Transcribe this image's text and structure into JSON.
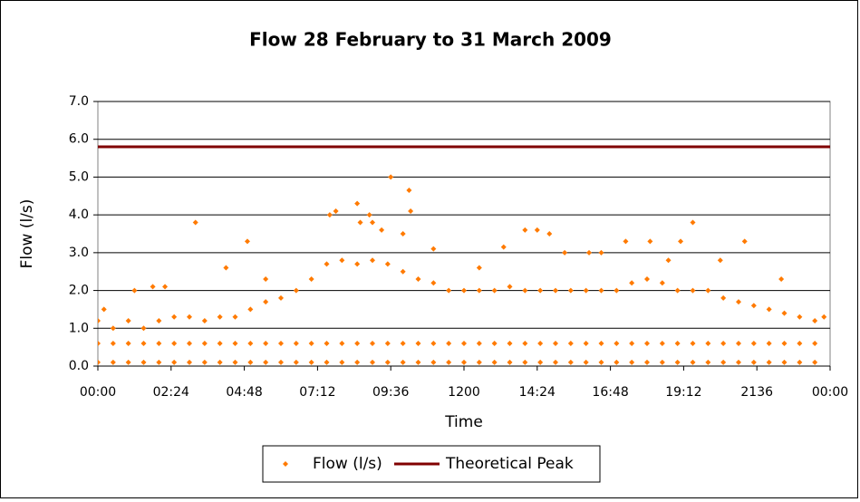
{
  "chart_data": {
    "type": "scatter",
    "title": "Flow 28 February to 31 March 2009",
    "x_label": "Time",
    "y_label": "Flow (l/s)",
    "xlim": [
      0,
      24
    ],
    "xticks": [
      {
        "value": 0,
        "label": "00:00"
      },
      {
        "value": 2.4,
        "label": "02:24"
      },
      {
        "value": 4.8,
        "label": "04:48"
      },
      {
        "value": 7.2,
        "label": "07:12"
      },
      {
        "value": 9.6,
        "label": "09:36"
      },
      {
        "value": 12,
        "label": "1200"
      },
      {
        "value": 14.4,
        "label": "14:24"
      },
      {
        "value": 16.8,
        "label": "16:48"
      },
      {
        "value": 19.2,
        "label": "19:12"
      },
      {
        "value": 21.6,
        "label": "2136"
      },
      {
        "value": 24,
        "label": "00:00"
      }
    ],
    "ylim": [
      0,
      7
    ],
    "yticks": [
      {
        "value": 0,
        "label": "0.0"
      },
      {
        "value": 1,
        "label": "1.0"
      },
      {
        "value": 2,
        "label": "2.0"
      },
      {
        "value": 3,
        "label": "3.0"
      },
      {
        "value": 4,
        "label": "4.0"
      },
      {
        "value": 5,
        "label": "5.0"
      },
      {
        "value": 6,
        "label": "6.0"
      },
      {
        "value": 7,
        "label": "7.0"
      }
    ],
    "grid": true,
    "legend": "bottom",
    "series": [
      {
        "name": "Flow (l/s)",
        "color": "#ff7a00",
        "x": [
          0,
          0,
          0,
          0.5,
          0.5,
          0.5,
          1,
          1,
          1,
          1.5,
          1.5,
          1.5,
          2,
          2,
          2,
          2.5,
          2.5,
          2.5,
          3,
          3,
          3,
          3.5,
          3.5,
          3.5,
          4,
          4,
          4,
          4.5,
          4.5,
          4.5,
          5,
          5,
          5,
          5.5,
          5.5,
          5.5,
          6,
          6,
          6,
          6.5,
          6.5,
          6.5,
          7,
          7,
          7,
          7.5,
          7.5,
          7.5,
          8,
          8,
          8,
          8.5,
          8.5,
          8.5,
          9,
          9,
          9,
          9.5,
          9.5,
          9.5,
          10,
          10,
          10,
          10.5,
          10.5,
          10.5,
          11,
          11,
          11,
          11.5,
          11.5,
          11.5,
          12,
          12,
          12,
          12.5,
          12.5,
          12.5,
          13,
          13,
          13,
          13.5,
          13.5,
          13.5,
          14,
          14,
          14,
          14.5,
          14.5,
          14.5,
          15,
          15,
          15,
          15.5,
          15.5,
          15.5,
          16,
          16,
          16,
          16.5,
          16.5,
          16.5,
          17,
          17,
          17,
          17.5,
          17.5,
          17.5,
          18,
          18,
          18,
          18.5,
          18.5,
          18.5,
          19,
          19,
          19,
          19.5,
          19.5,
          19.5,
          20,
          20,
          20,
          20.5,
          20.5,
          20.5,
          21,
          21,
          21,
          21.5,
          21.5,
          21.5,
          22,
          22,
          22,
          22.5,
          22.5,
          22.5,
          23,
          23,
          23,
          23.5,
          23.5,
          23.5,
          3.2,
          4.9,
          7.8,
          7.6,
          8.5,
          8.6,
          9.0,
          9.6,
          10.2,
          10.25,
          10.0,
          9.3,
          8.9,
          14.0,
          14.4,
          13.3,
          14.8,
          17.3,
          18.1,
          19.5,
          21.2,
          1.8,
          2.2,
          4.2,
          5.5,
          15.3,
          16.1,
          16.5,
          19.1,
          11.0,
          12.5,
          1.2,
          0.2,
          23.8,
          22.4,
          18.7,
          20.4
        ],
        "values": [
          0.1,
          0.6,
          1.2,
          0.1,
          0.6,
          1.0,
          0.1,
          0.6,
          1.2,
          0.1,
          0.6,
          1.0,
          0.1,
          0.6,
          1.2,
          0.1,
          0.6,
          1.3,
          0.1,
          0.6,
          1.3,
          0.1,
          0.6,
          1.2,
          0.1,
          0.6,
          1.3,
          0.1,
          0.6,
          1.3,
          0.1,
          0.6,
          1.5,
          0.1,
          0.6,
          1.7,
          0.1,
          0.6,
          1.8,
          0.1,
          0.6,
          2.0,
          0.1,
          0.6,
          2.3,
          0.1,
          0.6,
          2.7,
          0.1,
          0.6,
          2.8,
          0.1,
          0.6,
          2.7,
          0.1,
          0.6,
          2.8,
          0.1,
          0.6,
          2.7,
          0.1,
          0.6,
          2.5,
          0.1,
          0.6,
          2.3,
          0.1,
          0.6,
          2.2,
          0.1,
          0.6,
          2.0,
          0.1,
          0.6,
          2.0,
          0.1,
          0.6,
          2.0,
          0.1,
          0.6,
          2.0,
          0.1,
          0.6,
          2.1,
          0.1,
          0.6,
          2.0,
          0.1,
          0.6,
          2.0,
          0.1,
          0.6,
          2.0,
          0.1,
          0.6,
          2.0,
          0.1,
          0.6,
          2.0,
          0.1,
          0.6,
          2.0,
          0.1,
          0.6,
          2.0,
          0.1,
          0.6,
          2.2,
          0.1,
          0.6,
          2.3,
          0.1,
          0.6,
          2.2,
          0.1,
          0.6,
          2.0,
          0.1,
          0.6,
          2.0,
          0.1,
          0.6,
          2.0,
          0.1,
          0.6,
          1.8,
          0.1,
          0.6,
          1.7,
          0.1,
          0.6,
          1.6,
          0.1,
          0.6,
          1.5,
          0.1,
          0.6,
          1.4,
          0.1,
          0.6,
          1.3,
          0.1,
          0.6,
          1.2,
          3.8,
          3.3,
          4.1,
          4.0,
          4.3,
          3.8,
          3.8,
          5.0,
          4.65,
          4.1,
          3.5,
          3.6,
          4.0,
          3.6,
          3.6,
          3.15,
          3.5,
          3.3,
          3.3,
          3.8,
          3.3,
          2.1,
          2.1,
          2.6,
          2.3,
          3.0,
          3.0,
          3.0,
          3.3,
          3.1,
          2.6,
          2.0,
          1.5,
          1.3,
          2.3,
          2.8,
          2.8
        ]
      },
      {
        "name": "Theoretical Peak",
        "color": "#800000",
        "type": "line",
        "x": [
          0,
          24
        ],
        "values": [
          5.8,
          5.8
        ]
      }
    ]
  }
}
